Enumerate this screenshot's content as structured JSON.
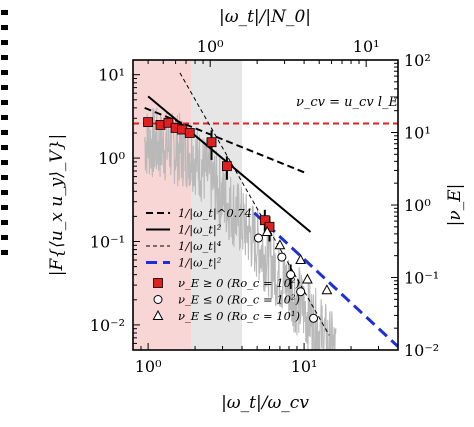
{
  "chart_data": {
    "type": "scatter",
    "title": "",
    "xlabel": "|ω_t|/ω_cv",
    "ylabel_left": "|F{⟨u_x u_y⟩_V}|",
    "ylabel_right": "|ν_E|",
    "xlabel_top": "|ω_t|/|N_0|",
    "x_scale": "log",
    "y_scale": "log",
    "xlim": [
      0.8,
      40
    ],
    "ylim_left": [
      0.005,
      15
    ],
    "ylim_right": [
      0.01,
      100
    ],
    "top_axis_ratio": 0.4,
    "x_ticks": [
      {
        "value": 1,
        "label": "10⁰"
      },
      {
        "value": 10,
        "label": "10¹"
      }
    ],
    "x_ticks_top": [
      {
        "value": 1,
        "label": "10⁰"
      },
      {
        "value": 10,
        "label": "10¹"
      }
    ],
    "y_ticks_left": [
      {
        "value": 0.01,
        "label": "10⁻²"
      },
      {
        "value": 0.1,
        "label": "10⁻¹"
      },
      {
        "value": 1,
        "label": "10⁰"
      },
      {
        "value": 10,
        "label": "10¹"
      }
    ],
    "y_ticks_right": [
      {
        "value": 0.01,
        "label": "10⁻²"
      },
      {
        "value": 0.1,
        "label": "10⁻¹"
      },
      {
        "value": 1,
        "label": "10⁰"
      },
      {
        "value": 10,
        "label": "10¹"
      },
      {
        "value": 100,
        "label": "10²"
      }
    ],
    "shaded_regions": [
      {
        "x_range": [
          0.8,
          1.9
        ],
        "color": "#f9d6d6"
      },
      {
        "x_range": [
          1.9,
          4.0
        ],
        "color": "#e6e6e6"
      }
    ],
    "reference_lines": [
      {
        "label": "1/|ω_t|^0.74",
        "style": "dashed",
        "color": "#000000",
        "points": [
          [
            0.95,
            4.0
          ],
          [
            10.5,
            0.65
          ]
        ]
      },
      {
        "label": "1/|ω_t|²",
        "style": "solid",
        "color": "#000000",
        "points": [
          [
            1.0,
            5.5
          ],
          [
            11.0,
            0.13
          ]
        ]
      },
      {
        "label": "1/|ω_t|⁴",
        "style": "thin-dashed",
        "color": "#000000",
        "points": [
          [
            1.6,
            10.5
          ],
          [
            14.5,
            0.0075
          ]
        ]
      },
      {
        "label": "1/|ω_t|²",
        "style": "blue-dashed",
        "color": "#1f2fd6",
        "points": [
          [
            4.8,
            0.22
          ],
          [
            40,
            0.0055
          ]
        ]
      }
    ],
    "horizontal_line": {
      "y": 2.6,
      "color": "#e02020",
      "style": "dashed",
      "label": "ν_cv = u_cv l_E"
    },
    "series": [
      {
        "name": "ν_E ≥ 0 (Ro_c = 10²)",
        "marker": "square",
        "color": "#e02020",
        "points": [
          {
            "x": 1.0,
            "y": 2.7,
            "err": 0
          },
          {
            "x": 1.2,
            "y": 2.5,
            "err": 0
          },
          {
            "x": 1.35,
            "y": 2.65,
            "err": 0
          },
          {
            "x": 1.5,
            "y": 2.3,
            "err": 0
          },
          {
            "x": 1.65,
            "y": 2.2,
            "err": 0
          },
          {
            "x": 1.85,
            "y": 2.0,
            "err": 0
          },
          {
            "x": 2.55,
            "y": 1.55,
            "err": 0.6
          },
          {
            "x": 3.2,
            "y": 0.8,
            "err": 0.25
          },
          {
            "x": 5.6,
            "y": 0.18,
            "err": 0.06
          },
          {
            "x": 6.0,
            "y": 0.15,
            "err": 0.05
          }
        ]
      },
      {
        "name": "ν_E ≤ 0 (Ro_c = 10²)",
        "marker": "circle",
        "color": "#ffffff",
        "points": [
          {
            "x": 5.1,
            "y": 0.11,
            "err": 0
          },
          {
            "x": 7.2,
            "y": 0.065,
            "err": 0
          },
          {
            "x": 8.2,
            "y": 0.04,
            "err": 0.013
          },
          {
            "x": 9.5,
            "y": 0.025,
            "err": 0
          },
          {
            "x": 11.5,
            "y": 0.012,
            "err": 0
          }
        ]
      },
      {
        "name": "ν_E ≤ 0 (Ro_c = 10¹)",
        "marker": "triangle",
        "color": "#ffffff",
        "points": [
          {
            "x": 5.8,
            "y": 0.13,
            "err": 0
          },
          {
            "x": 7.0,
            "y": 0.09,
            "err": 0
          },
          {
            "x": 9.5,
            "y": 0.06,
            "err": 0
          },
          {
            "x": 10.5,
            "y": 0.035,
            "err": 0
          },
          {
            "x": 14.0,
            "y": 0.026,
            "err": 0
          }
        ]
      }
    ],
    "legend_placement": "bottom-left",
    "grid": false
  }
}
